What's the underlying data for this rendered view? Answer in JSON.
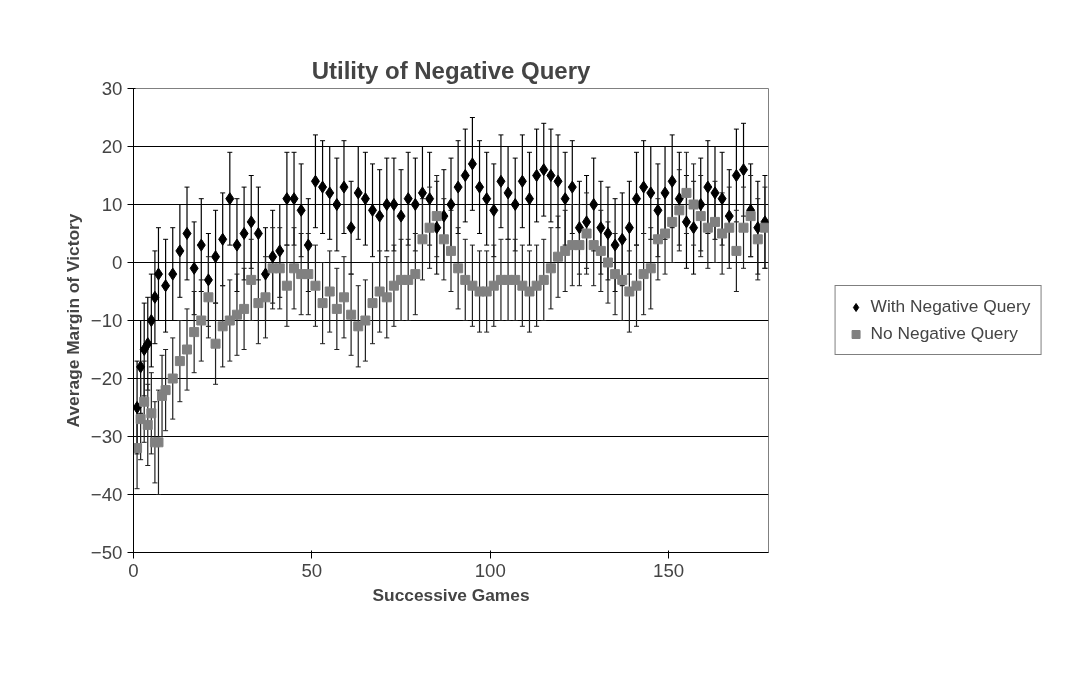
{
  "chart_data": {
    "type": "scatter",
    "title": "Utility of Negative Query",
    "xlabel": "Successive Games",
    "ylabel": "Average Margin of Victory",
    "xlim": [
      0,
      178
    ],
    "xticks": [
      0,
      50,
      100,
      150
    ],
    "ylim": [
      -50,
      30
    ],
    "yticks": [
      -50,
      -40,
      -30,
      -20,
      -10,
      0,
      10,
      20,
      30
    ],
    "grid": "y",
    "legend": "right",
    "series": [
      {
        "name": "With Negative Query",
        "color": "#000000",
        "marker": "diamond",
        "x": [
          1,
          2,
          3,
          4,
          5,
          6,
          7,
          9,
          11,
          13,
          15,
          17,
          19,
          21,
          23,
          25,
          27,
          29,
          31,
          33,
          35,
          37,
          39,
          41,
          43,
          45,
          47,
          49,
          51,
          53,
          55,
          57,
          59,
          61,
          63,
          65,
          67,
          69,
          71,
          73,
          75,
          77,
          79,
          81,
          83,
          85,
          87,
          89,
          91,
          93,
          95,
          97,
          99,
          101,
          103,
          105,
          107,
          109,
          111,
          113,
          115,
          117,
          119,
          121,
          123,
          125,
          127,
          129,
          131,
          133,
          135,
          137,
          139,
          141,
          143,
          145,
          147,
          149,
          151,
          153,
          155,
          157,
          159,
          161,
          163,
          165,
          167,
          169,
          171,
          173,
          175,
          177
        ],
        "values": [
          -25,
          -18,
          -15,
          -14,
          -10,
          -6,
          -2,
          -4,
          -2,
          2,
          5,
          -1,
          3,
          -3,
          1,
          4,
          11,
          3,
          5,
          7,
          5,
          -2,
          1,
          2,
          11,
          11,
          9,
          3,
          14,
          13,
          12,
          10,
          13,
          6,
          12,
          11,
          9,
          8,
          10,
          10,
          8,
          11,
          10,
          12,
          11,
          6,
          8,
          10,
          13,
          15,
          17,
          13,
          11,
          9,
          14,
          12,
          10,
          14,
          11,
          15,
          16,
          15,
          14,
          11,
          13,
          6,
          7,
          10,
          6,
          5,
          3,
          4,
          6,
          11,
          13,
          12,
          9,
          12,
          14,
          11,
          7,
          6,
          10,
          13,
          12,
          11,
          8,
          15,
          16,
          9,
          6,
          7
        ],
        "errors": [
          8,
          8,
          8,
          8,
          8,
          8,
          8,
          8,
          8,
          8,
          8,
          8,
          8,
          8,
          8,
          8,
          8,
          8,
          8,
          8,
          8,
          8,
          8,
          8,
          8,
          8,
          8,
          8,
          8,
          8,
          8,
          8,
          8,
          8,
          8,
          8,
          8,
          8,
          8,
          8,
          8,
          8,
          8,
          8,
          8,
          8,
          8,
          8,
          8,
          8,
          8,
          8,
          8,
          8,
          8,
          8,
          8,
          8,
          8,
          8,
          8,
          8,
          8,
          8,
          8,
          8,
          8,
          8,
          8,
          8,
          8,
          8,
          8,
          8,
          8,
          8,
          8,
          8,
          8,
          8,
          8,
          8,
          8,
          8,
          8,
          8,
          8,
          8,
          8,
          8,
          8,
          8
        ]
      },
      {
        "name": "No Negative Query",
        "color": "#808080",
        "marker": "square",
        "x": [
          1,
          2,
          3,
          4,
          5,
          6,
          7,
          8,
          9,
          11,
          13,
          15,
          17,
          19,
          21,
          23,
          25,
          27,
          29,
          31,
          33,
          35,
          37,
          39,
          41,
          43,
          45,
          47,
          49,
          51,
          53,
          55,
          57,
          59,
          61,
          63,
          65,
          67,
          69,
          71,
          73,
          75,
          77,
          79,
          81,
          83,
          85,
          87,
          89,
          91,
          93,
          95,
          97,
          99,
          101,
          103,
          105,
          107,
          109,
          111,
          113,
          115,
          117,
          119,
          121,
          123,
          125,
          127,
          129,
          131,
          133,
          135,
          137,
          139,
          141,
          143,
          145,
          147,
          149,
          151,
          153,
          155,
          157,
          159,
          161,
          163,
          165,
          167,
          169,
          171,
          173,
          175,
          177
        ],
        "values": [
          -32,
          -27,
          -24,
          -28,
          -26,
          -31,
          -31,
          -23,
          -22,
          -20,
          -17,
          -15,
          -12,
          -10,
          -6,
          -14,
          -11,
          -10,
          -9,
          -8,
          -3,
          -7,
          -6,
          -1,
          -1,
          -4,
          -1,
          -2,
          -2,
          -4,
          -7,
          -5,
          -8,
          -6,
          -9,
          -11,
          -10,
          -7,
          -5,
          -6,
          -4,
          -3,
          -3,
          -2,
          4,
          6,
          8,
          4,
          2,
          -1,
          -3,
          -4,
          -5,
          -5,
          -4,
          -3,
          -3,
          -3,
          -4,
          -5,
          -4,
          -3,
          -1,
          1,
          2,
          3,
          3,
          5,
          3,
          2,
          0,
          -2,
          -3,
          -5,
          -4,
          -2,
          -1,
          4,
          5,
          7,
          9,
          12,
          10,
          8,
          6,
          7,
          5,
          6,
          2,
          6,
          8,
          4,
          6
        ],
        "errors": [
          7,
          7,
          7,
          7,
          7,
          7,
          9,
          7,
          7,
          7,
          7,
          7,
          7,
          7,
          7,
          7,
          7,
          7,
          7,
          7,
          7,
          7,
          7,
          7,
          7,
          7,
          7,
          7,
          7,
          7,
          7,
          7,
          7,
          7,
          7,
          7,
          7,
          7,
          7,
          7,
          7,
          7,
          7,
          7,
          7,
          7,
          7,
          7,
          7,
          7,
          7,
          7,
          7,
          7,
          7,
          7,
          7,
          7,
          7,
          7,
          7,
          7,
          7,
          7,
          7,
          7,
          7,
          7,
          7,
          7,
          7,
          7,
          7,
          7,
          7,
          7,
          7,
          7,
          7,
          7,
          7,
          7,
          7,
          7,
          7,
          7,
          7,
          7,
          7,
          7,
          7,
          7,
          7
        ]
      }
    ]
  }
}
